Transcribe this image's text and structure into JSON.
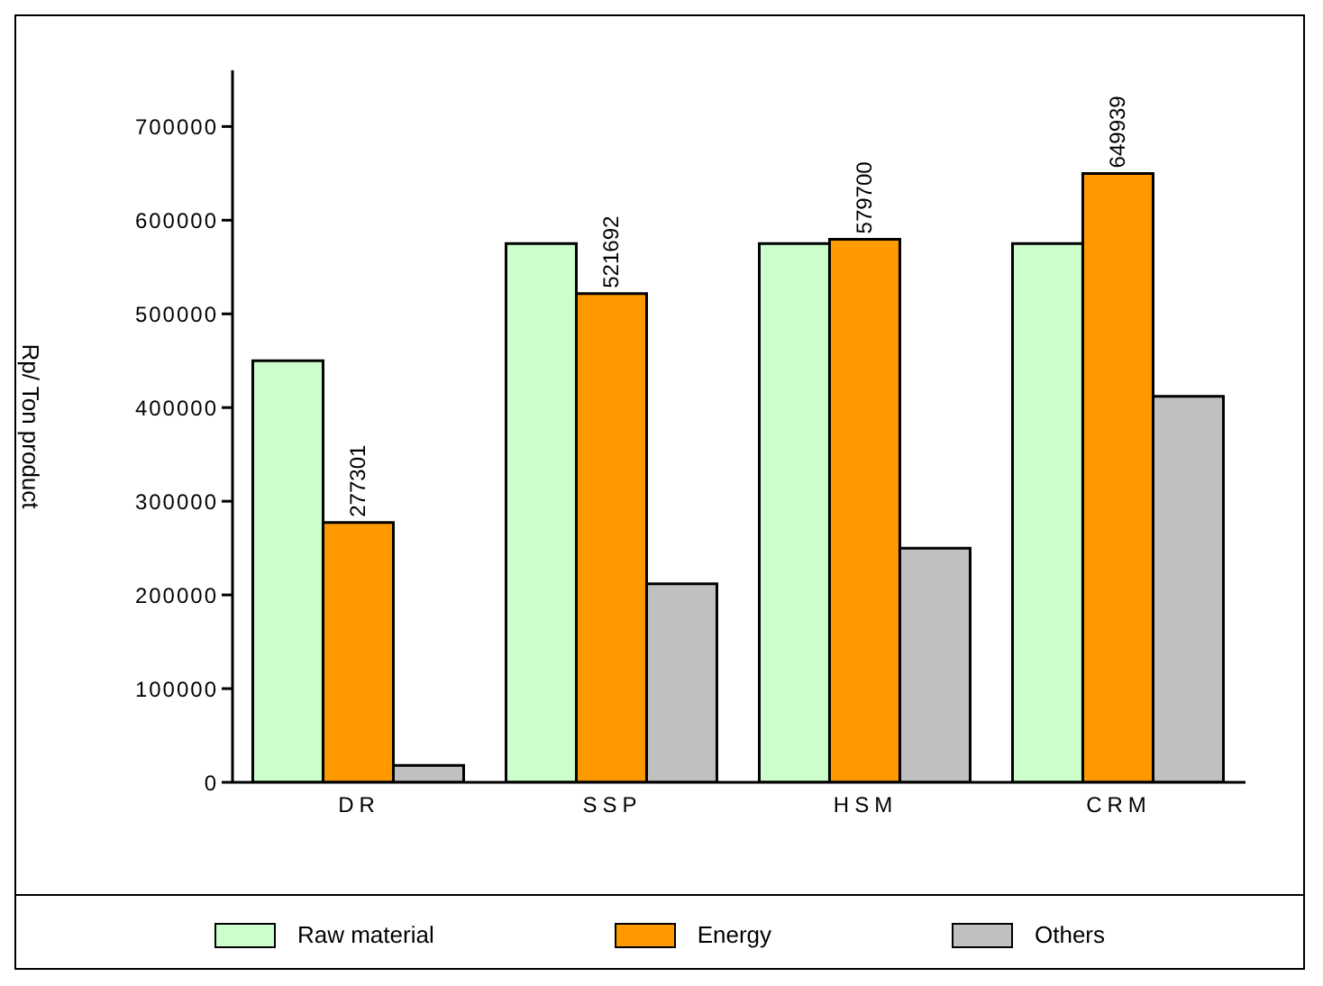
{
  "chart_data": {
    "type": "bar",
    "ylabel": "Rp/ Ton product",
    "categories": [
      "DR",
      "SSP",
      "HSM",
      "CRM"
    ],
    "series": [
      {
        "name": "Raw material",
        "color": "#ccffcc",
        "values": [
          450000,
          575000,
          575000,
          575000
        ]
      },
      {
        "name": "Energy",
        "color": "#ff9900",
        "values": [
          277301,
          521692,
          579700,
          649939
        ],
        "value_labels": [
          "277301",
          "521692",
          "579700",
          "649939"
        ]
      },
      {
        "name": "Others",
        "color": "#c0c0c0",
        "values": [
          18000,
          212000,
          250000,
          412000
        ]
      }
    ],
    "ylim": [
      0,
      760000
    ],
    "yticks": [
      0,
      100000,
      200000,
      300000,
      400000,
      500000,
      600000,
      700000
    ],
    "grid": false,
    "legend": "bottom"
  }
}
